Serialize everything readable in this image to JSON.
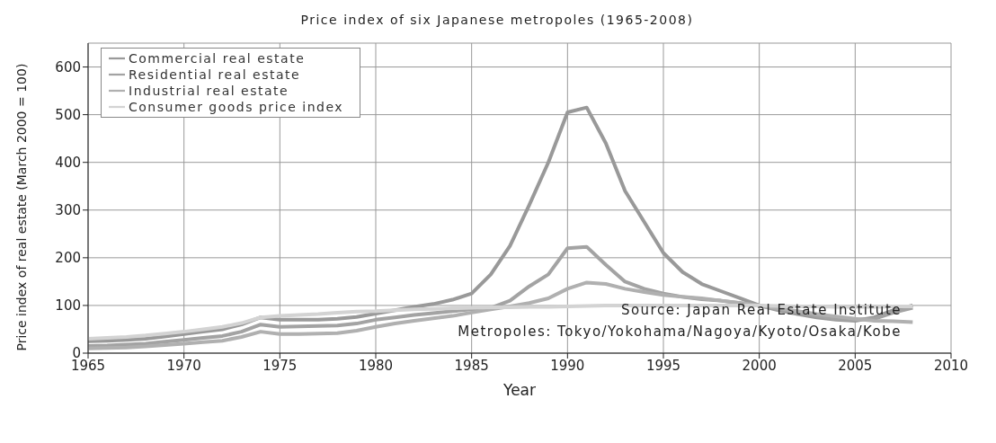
{
  "chart_data": {
    "type": "line",
    "title": "Price index of six Japanese metropoles (1965-2008)",
    "xlabel": "Year",
    "ylabel": "Price index of real estate (March 2000 = 100)",
    "x": [
      1965,
      1966,
      1967,
      1968,
      1969,
      1970,
      1971,
      1972,
      1973,
      1974,
      1975,
      1976,
      1977,
      1978,
      1979,
      1980,
      1981,
      1982,
      1983,
      1984,
      1985,
      1986,
      1987,
      1988,
      1989,
      1990,
      1991,
      1992,
      1993,
      1994,
      1995,
      1996,
      1997,
      1998,
      1999,
      2000,
      2001,
      2002,
      2003,
      2004,
      2005,
      2006,
      2007,
      2008
    ],
    "series": [
      {
        "name": "Commercial real estate",
        "color": "#999999",
        "values": [
          25,
          26,
          28,
          30,
          35,
          40,
          45,
          50,
          60,
          75,
          70,
          70,
          70,
          72,
          76,
          83,
          90,
          97,
          103,
          112,
          125,
          165,
          225,
          310,
          400,
          505,
          515,
          440,
          340,
          275,
          210,
          170,
          145,
          130,
          115,
          100,
          90,
          82,
          75,
          70,
          68,
          75,
          90,
          100
        ]
      },
      {
        "name": "Residential real estate",
        "color": "#a3a3a3",
        "values": [
          15,
          16,
          18,
          20,
          24,
          28,
          32,
          36,
          45,
          60,
          55,
          56,
          57,
          58,
          62,
          70,
          75,
          80,
          84,
          88,
          92,
          95,
          110,
          140,
          165,
          220,
          223,
          185,
          150,
          135,
          125,
          118,
          113,
          110,
          105,
          100,
          92,
          85,
          78,
          72,
          70,
          72,
          85,
          95
        ]
      },
      {
        "name": "Industrial real estate",
        "color": "#b0b0b0",
        "values": [
          10,
          11,
          12,
          14,
          17,
          20,
          23,
          26,
          34,
          45,
          40,
          40,
          41,
          42,
          47,
          55,
          62,
          68,
          73,
          78,
          85,
          92,
          98,
          105,
          115,
          135,
          148,
          145,
          135,
          128,
          122,
          118,
          115,
          110,
          105,
          100,
          94,
          88,
          82,
          77,
          72,
          68,
          67,
          65
        ]
      },
      {
        "name": "Consumer goods price index",
        "color": "#d3d3d3",
        "values": [
          30,
          32,
          34,
          37,
          41,
          45,
          50,
          55,
          63,
          75,
          78,
          80,
          82,
          85,
          87,
          88,
          90,
          92,
          93,
          94,
          95,
          96,
          96,
          97,
          97,
          98,
          99,
          100,
          100,
          100,
          100,
          100,
          100,
          100,
          100,
          100,
          99,
          98,
          98,
          97,
          97,
          97,
          98,
          98
        ]
      }
    ],
    "xlim": [
      1965,
      2010
    ],
    "xticks": [
      1965,
      1970,
      1975,
      1980,
      1985,
      1990,
      1995,
      2000,
      2005,
      2010
    ],
    "ylim": [
      0,
      650
    ],
    "yticks": [
      0,
      100,
      200,
      300,
      400,
      500,
      600
    ],
    "grid": true,
    "legend": "top left",
    "annotations": [
      "Source: Japan Real Estate Institute",
      "Metropoles: Tokyo/Yokohama/Nagoya/Kyoto/Osaka/Kobe"
    ]
  }
}
